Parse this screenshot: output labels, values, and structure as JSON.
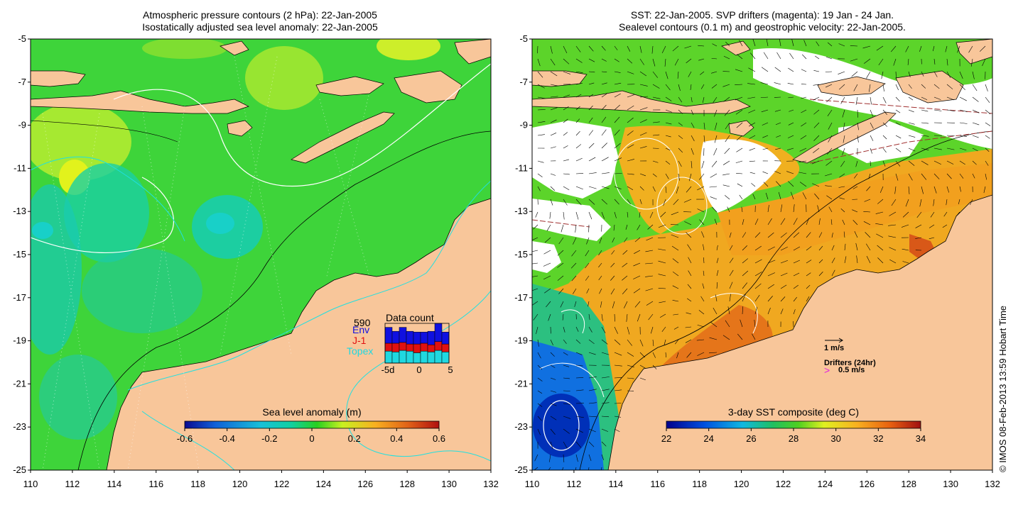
{
  "left_panel": {
    "title_line1": "Atmospheric pressure contours (2 hPa): 22-Jan-2005",
    "title_line2": "Isostatically adjusted sea level anomaly: 22-Jan-2005",
    "y_ticks": [
      "-5",
      "-7",
      "-9",
      "-11",
      "-13",
      "-15",
      "-17",
      "-19",
      "-21",
      "-23",
      "-25"
    ],
    "x_ticks": [
      "110",
      "112",
      "114",
      "116",
      "118",
      "120",
      "122",
      "124",
      "126",
      "128",
      "130",
      "132"
    ],
    "colorbar_title": "Sea level anomaly (m)",
    "colorbar_ticks": [
      "-0.6",
      "-0.4",
      "-0.2",
      "0",
      "0.2",
      "0.4",
      "0.6"
    ],
    "inset": {
      "title": "Data count",
      "total": "590",
      "legend": [
        "Env",
        "J-1",
        "Topex"
      ],
      "x_ticks": [
        "-5d",
        "0",
        "5"
      ],
      "colors": {
        "env": "#1010e0",
        "j1": "#e01010",
        "topex": "#20d8e0"
      },
      "days": [
        {
          "topex": 0.3,
          "j1": 0.2,
          "env": 0.4
        },
        {
          "topex": 0.28,
          "j1": 0.22,
          "env": 0.3
        },
        {
          "topex": 0.32,
          "j1": 0.2,
          "env": 0.38
        },
        {
          "topex": 0.3,
          "j1": 0.18,
          "env": 0.32
        },
        {
          "topex": 0.26,
          "j1": 0.22,
          "env": 0.3
        },
        {
          "topex": 0.3,
          "j1": 0.2,
          "env": 0.28
        },
        {
          "topex": 0.28,
          "j1": 0.18,
          "env": 0.34
        },
        {
          "topex": 0.32,
          "j1": 0.22,
          "env": 0.46
        },
        {
          "topex": 0.28,
          "j1": 0.2,
          "env": 0.3
        }
      ]
    }
  },
  "right_panel": {
    "title_line1": "SST: 22-Jan-2005. SVP drifters (magenta): 19 Jan - 24 Jan.",
    "title_line2": "Sealevel contours (0.1 m) and geostrophic velocity: 22-Jan-2005.",
    "y_ticks": [
      "-5",
      "-7",
      "-9",
      "-11",
      "-13",
      "-15",
      "-17",
      "-19",
      "-21",
      "-23",
      "-25"
    ],
    "x_ticks": [
      "110",
      "112",
      "114",
      "116",
      "118",
      "120",
      "122",
      "124",
      "126",
      "128",
      "130",
      "132"
    ],
    "colorbar_title": "3-day SST composite (deg C)",
    "colorbar_ticks": [
      "22",
      "24",
      "26",
      "28",
      "30",
      "32",
      "34"
    ],
    "velocity_legend": "1 m/s",
    "drifters_label": "Drifters (24hr)",
    "drifters_scale": "0.5 m/s",
    "drifters_glyph": ">"
  },
  "credit": "© IMOS 08-Feb-2013 13:59 Hobart Time",
  "colors": {
    "land": "#f8c69a",
    "sla_scale": [
      "#0a0a90",
      "#1060d8",
      "#18c0d8",
      "#10d0a0",
      "#28d020",
      "#c8f020",
      "#f8b020",
      "#e06018",
      "#b01010"
    ],
    "sst_scale": [
      "#00008c",
      "#0050e0",
      "#10b8e0",
      "#20c060",
      "#50d020",
      "#e0f020",
      "#f8b020",
      "#e86010",
      "#a01010"
    ]
  }
}
